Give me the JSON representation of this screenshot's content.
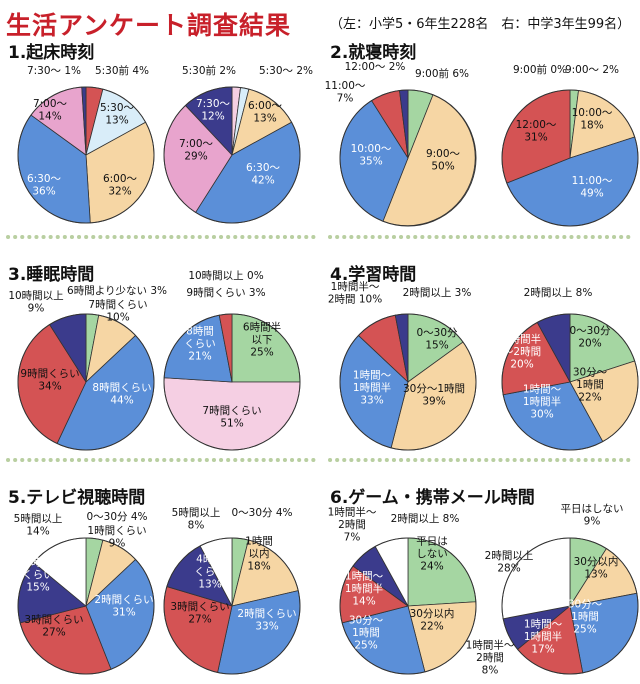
{
  "title": "生活アンケート調査結果",
  "subtitle": "（左：小学5・6年生228名　右：中学3年生99名）",
  "colors": {
    "green": "#a5d6a2",
    "yellow": "#f6d6a4",
    "blue": "#5b8fd8",
    "red": "#d45354",
    "navy": "#3b3b8c",
    "pink": "#e8a4cd",
    "lightblue": "#d9edf9",
    "lightpink": "#f5cfe3",
    "white": "#ffffff",
    "title": "#c8202a",
    "separator": "#b9cfa1"
  },
  "sections": [
    {
      "title": "1.起床時刻"
    },
    {
      "title": "2.就寝時刻"
    },
    {
      "title": "3.睡眠時間"
    },
    {
      "title": "4.学習時間"
    },
    {
      "title": "5.テレビ視聴時間"
    },
    {
      "title": "6.ゲーム・携帯メール時間"
    }
  ],
  "chart_data": [
    {
      "type": "pie",
      "section": "1.起床時刻",
      "group": "小学5・6年生",
      "slices": [
        {
          "label": "5:30前",
          "value": 4,
          "color": "red"
        },
        {
          "label": "5:30～",
          "value": 13,
          "color": "lightblue"
        },
        {
          "label": "6:00～",
          "value": 32,
          "color": "yellow"
        },
        {
          "label": "6:30～",
          "value": 36,
          "color": "blue"
        },
        {
          "label": "7:00～",
          "value": 14,
          "color": "pink"
        },
        {
          "label": "7:30～",
          "value": 1,
          "color": "navy"
        }
      ],
      "labels": [
        [
          "5:30前 4%"
        ],
        [
          "5:30～",
          "13%"
        ],
        [
          "6:00～",
          "32%"
        ],
        [
          "6:30～",
          "36%"
        ],
        [
          "7:00～",
          "14%"
        ],
        [
          "7:30～ 1%"
        ]
      ]
    },
    {
      "type": "pie",
      "section": "1.起床時刻",
      "group": "中学3年生",
      "slices": [
        {
          "label": "5:30前",
          "value": 2,
          "color": "lightpink"
        },
        {
          "label": "5:30～",
          "value": 2,
          "color": "lightblue"
        },
        {
          "label": "6:00～",
          "value": 13,
          "color": "yellow"
        },
        {
          "label": "6:30～",
          "value": 42,
          "color": "blue"
        },
        {
          "label": "7:00～",
          "value": 29,
          "color": "pink"
        },
        {
          "label": "7:30～",
          "value": 12,
          "color": "navy"
        }
      ],
      "labels": [
        [
          "5:30前 2%"
        ],
        [
          "5:30～ 2%"
        ],
        [
          "6:00～",
          "13%"
        ],
        [
          "6:30～",
          "42%"
        ],
        [
          "7:00～",
          "29%"
        ],
        [
          "7:30～",
          "12%"
        ]
      ]
    },
    {
      "type": "pie",
      "section": "2.就寝時刻",
      "group": "小学5・6年生",
      "slices": [
        {
          "label": "9:00前",
          "value": 6,
          "color": "green"
        },
        {
          "label": "9:00～",
          "value": 50,
          "color": "yellow"
        },
        {
          "label": "10:00～",
          "value": 35,
          "color": "blue"
        },
        {
          "label": "11:00～",
          "value": 7,
          "color": "red"
        },
        {
          "label": "12:00～",
          "value": 2,
          "color": "navy"
        }
      ],
      "labels": [
        [
          "9:00前 6%"
        ],
        [
          "9:00～",
          "50%"
        ],
        [
          "10:00～",
          "35%"
        ],
        [
          "11:00～",
          "7%"
        ],
        [
          "12:00～ 2%"
        ]
      ]
    },
    {
      "type": "pie",
      "section": "2.就寝時刻",
      "group": "中学3年生",
      "slices": [
        {
          "label": "9:00前",
          "value": 0,
          "color": "green"
        },
        {
          "label": "9:00～",
          "value": 2,
          "color": "green"
        },
        {
          "label": "10:00～",
          "value": 18,
          "color": "yellow"
        },
        {
          "label": "11:00～",
          "value": 49,
          "color": "blue"
        },
        {
          "label": "12:00～",
          "value": 31,
          "color": "red"
        }
      ],
      "labels": [
        [
          "9:00前 0%"
        ],
        [
          "9:00～ 2%"
        ],
        [
          "10:00～",
          "18%"
        ],
        [
          "11:00～",
          "49%"
        ],
        [
          "12:00～",
          "31%"
        ]
      ]
    },
    {
      "type": "pie",
      "section": "3.睡眠時間",
      "group": "小学5・6年生",
      "slices": [
        {
          "label": "6時間より少ない",
          "value": 3,
          "color": "green"
        },
        {
          "label": "7時間くらい",
          "value": 10,
          "color": "yellow"
        },
        {
          "label": "8時間くらい",
          "value": 44,
          "color": "blue"
        },
        {
          "label": "9時間くらい",
          "value": 34,
          "color": "red"
        },
        {
          "label": "10時間以上",
          "value": 9,
          "color": "navy"
        }
      ],
      "labels": [
        [
          "6時間より少ない 3%"
        ],
        [
          "7時間くらい",
          "10%"
        ],
        [
          "8時間くらい",
          "44%"
        ],
        [
          "9時間くらい",
          "34%"
        ],
        [
          "10時間以上",
          "9%"
        ]
      ]
    },
    {
      "type": "pie",
      "section": "3.睡眠時間",
      "group": "中学3年生",
      "slices": [
        {
          "label": "6時間半以下",
          "value": 25,
          "color": "green"
        },
        {
          "label": "7時間くらい",
          "value": 51,
          "color": "lightpink"
        },
        {
          "label": "8時間くらい",
          "value": 21,
          "color": "blue"
        },
        {
          "label": "9時間くらい",
          "value": 3,
          "color": "red"
        },
        {
          "label": "10時間以上",
          "value": 0,
          "color": "navy"
        }
      ],
      "labels": [
        [
          "6時間半",
          "以下",
          "25%"
        ],
        [
          "7時間くらい",
          "51%"
        ],
        [
          "8時間",
          "くらい",
          "21%"
        ],
        [
          "9時間くらい 3%"
        ],
        [
          "10時間以上 0%"
        ]
      ]
    },
    {
      "type": "pie",
      "section": "4.学習時間",
      "group": "小学5・6年生",
      "slices": [
        {
          "label": "0～30分",
          "value": 15,
          "color": "green"
        },
        {
          "label": "30分～1時間",
          "value": 39,
          "color": "yellow"
        },
        {
          "label": "1時間～1時間半",
          "value": 33,
          "color": "blue"
        },
        {
          "label": "1時間半～2時間",
          "value": 10,
          "color": "red"
        },
        {
          "label": "2時間以上",
          "value": 3,
          "color": "navy"
        }
      ],
      "labels": [
        [
          "0～30分",
          "15%"
        ],
        [
          "30分～1時間",
          "39%"
        ],
        [
          "1時間～",
          "1時間半",
          "33%"
        ],
        [
          "1時間半～",
          "2時間 10%"
        ],
        [
          "2時間以上 3%"
        ]
      ]
    },
    {
      "type": "pie",
      "section": "4.学習時間",
      "group": "中学3年生",
      "slices": [
        {
          "label": "0～30分",
          "value": 20,
          "color": "green"
        },
        {
          "label": "30分～1時間",
          "value": 22,
          "color": "yellow"
        },
        {
          "label": "1時間～1時間半",
          "value": 30,
          "color": "blue"
        },
        {
          "label": "1時間半～2時間",
          "value": 20,
          "color": "red"
        },
        {
          "label": "2時間以上",
          "value": 8,
          "color": "navy"
        }
      ],
      "labels": [
        [
          "0～30分",
          "20%"
        ],
        [
          "30分～",
          "1時間",
          "22%"
        ],
        [
          "1時間～",
          "1時間半",
          "30%"
        ],
        [
          "1時間半",
          "～2時間",
          "20%"
        ],
        [
          "2時間以上 8%"
        ]
      ]
    },
    {
      "type": "pie",
      "section": "5.テレビ視聴時間",
      "group": "小学5・6年生",
      "slices": [
        {
          "label": "0～30分",
          "value": 4,
          "color": "green"
        },
        {
          "label": "1時間くらい",
          "value": 9,
          "color": "yellow"
        },
        {
          "label": "2時間くらい",
          "value": 31,
          "color": "blue"
        },
        {
          "label": "3時間くらい",
          "value": 27,
          "color": "red"
        },
        {
          "label": "4時間くらい",
          "value": 15,
          "color": "navy"
        },
        {
          "label": "5時間以上",
          "value": 14,
          "color": "white"
        }
      ],
      "labels": [
        [
          "0～30分 4%"
        ],
        [
          "1時間くらい",
          "9%"
        ],
        [
          "2時間くらい",
          "31%"
        ],
        [
          "3時間くらい",
          "27%"
        ],
        [
          "4時間",
          "くらい",
          "15%"
        ],
        [
          "5時間以上",
          "14%"
        ]
      ]
    },
    {
      "type": "pie",
      "section": "5.テレビ視聴時間",
      "group": "中学3年生",
      "slices": [
        {
          "label": "0～30分",
          "value": 4,
          "color": "green"
        },
        {
          "label": "1時間以内",
          "value": 18,
          "color": "yellow"
        },
        {
          "label": "2時間くらい",
          "value": 33,
          "color": "blue"
        },
        {
          "label": "3時間くらい",
          "value": 27,
          "color": "red"
        },
        {
          "label": "4時間くらい",
          "value": 13,
          "color": "navy"
        },
        {
          "label": "5時間以上",
          "value": 8,
          "color": "white"
        }
      ],
      "labels": [
        [
          "0～30分 4%"
        ],
        [
          "1時間",
          "以内",
          "18%"
        ],
        [
          "2時間くらい",
          "33%"
        ],
        [
          "3時間くらい",
          "27%"
        ],
        [
          "4時間",
          "くらい",
          "13%"
        ],
        [
          "5時間以上",
          "8%"
        ]
      ]
    },
    {
      "type": "pie",
      "section": "6.ゲーム・携帯メール時間",
      "group": "小学5・6年生",
      "slices": [
        {
          "label": "平日はしない",
          "value": 24,
          "color": "green"
        },
        {
          "label": "30分以内",
          "value": 22,
          "color": "yellow"
        },
        {
          "label": "30分～1時間",
          "value": 25,
          "color": "blue"
        },
        {
          "label": "1時間～1時間半",
          "value": 14,
          "color": "red"
        },
        {
          "label": "1時間半～2時間",
          "value": 7,
          "color": "navy"
        },
        {
          "label": "2時間以上",
          "value": 8,
          "color": "white"
        }
      ],
      "labels": [
        [
          "平日は",
          "しない",
          "24%"
        ],
        [
          "30分以内",
          "22%"
        ],
        [
          "30分～",
          "1時間",
          "25%"
        ],
        [
          "1時間～",
          "1時間半",
          "14%"
        ],
        [
          "1時間半～",
          "2時間",
          "7%"
        ],
        [
          "2時間以上 8%"
        ]
      ]
    },
    {
      "type": "pie",
      "section": "6.ゲーム・携帯メール時間",
      "group": "中学3年生",
      "slices": [
        {
          "label": "平日はしない",
          "value": 9,
          "color": "green"
        },
        {
          "label": "30分以内",
          "value": 13,
          "color": "yellow"
        },
        {
          "label": "30分～1時間",
          "value": 25,
          "color": "blue"
        },
        {
          "label": "1時間～1時間半",
          "value": 17,
          "color": "red"
        },
        {
          "label": "1時間半～2時間",
          "value": 8,
          "color": "navy"
        },
        {
          "label": "2時間以上",
          "value": 28,
          "color": "white"
        }
      ],
      "labels": [
        [
          "平日はしない",
          "9%"
        ],
        [
          "30分以内",
          "13%"
        ],
        [
          "30分～",
          "1時間",
          "25%"
        ],
        [
          "1時間～",
          "1時間半",
          "17%"
        ],
        [
          "1時間半～",
          "2時間",
          "8%"
        ],
        [
          "2時間以上",
          "28%"
        ]
      ]
    }
  ]
}
